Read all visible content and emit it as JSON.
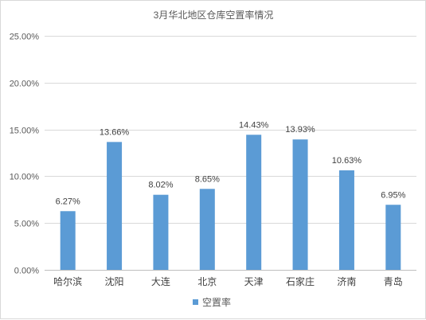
{
  "chart_data": {
    "type": "bar",
    "title": "3月华北地区仓库空置率情况",
    "categories": [
      "哈尔滨",
      "沈阳",
      "大连",
      "北京",
      "天津",
      "石家庄",
      "济南",
      "青岛"
    ],
    "series": [
      {
        "name": "空置率",
        "values": [
          6.27,
          13.66,
          8.02,
          8.65,
          14.43,
          13.93,
          10.63,
          6.95
        ],
        "labels": [
          "6.27%",
          "13.66%",
          "8.02%",
          "8.65%",
          "14.43%",
          "13.93%",
          "10.63%",
          "6.95%"
        ],
        "color": "#5b9bd5"
      }
    ],
    "yticks": [
      0,
      5,
      10,
      15,
      20,
      25
    ],
    "ytick_labels": [
      "0.00%",
      "5.00%",
      "10.00%",
      "15.00%",
      "20.00%",
      "25.00%"
    ],
    "ylim": [
      0,
      25
    ],
    "grid": true,
    "legend": "bottom"
  }
}
